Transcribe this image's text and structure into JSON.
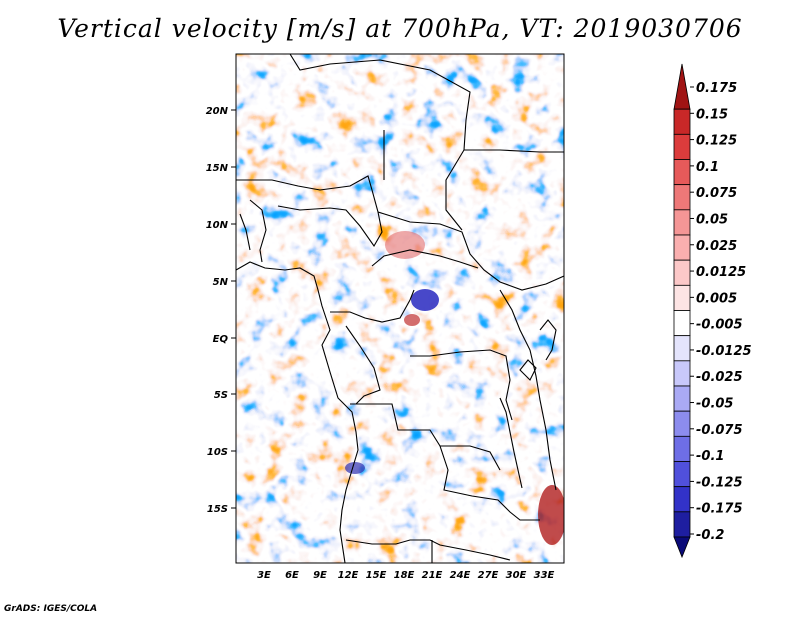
{
  "title": "Vertical velocity [m/s] at 700hPa, VT: 2019030706",
  "credit": "GrADS: IGES/COLA",
  "map": {
    "lat_labels": [
      "20N",
      "15N",
      "10N",
      "5N",
      "EQ",
      "5S",
      "10S",
      "15S"
    ],
    "lon_labels": [
      "3E",
      "6E",
      "9E",
      "12E",
      "15E",
      "18E",
      "21E",
      "24E",
      "27E",
      "30E",
      "33E"
    ]
  },
  "colorbar": {
    "labels": [
      "0.175",
      "0.15",
      "0.125",
      "0.1",
      "0.075",
      "0.05",
      "0.025",
      "0.0125",
      "0.005",
      "-0.005",
      "-0.0125",
      "-0.025",
      "-0.05",
      "-0.075",
      "-0.1",
      "-0.125",
      "-0.175",
      "-0.2"
    ],
    "colors": [
      "#a01414",
      "#c82828",
      "#dc3c3c",
      "#e65a5a",
      "#ee7878",
      "#f59696",
      "#faafaf",
      "#fcc8c8",
      "#fde4e4",
      "#ffffff",
      "#e4e4fc",
      "#c8c8fa",
      "#aaaaf5",
      "#8c8cee",
      "#6e6ee6",
      "#5050dc",
      "#3232c8",
      "#1e1ea0",
      "#0a0a78"
    ]
  }
}
